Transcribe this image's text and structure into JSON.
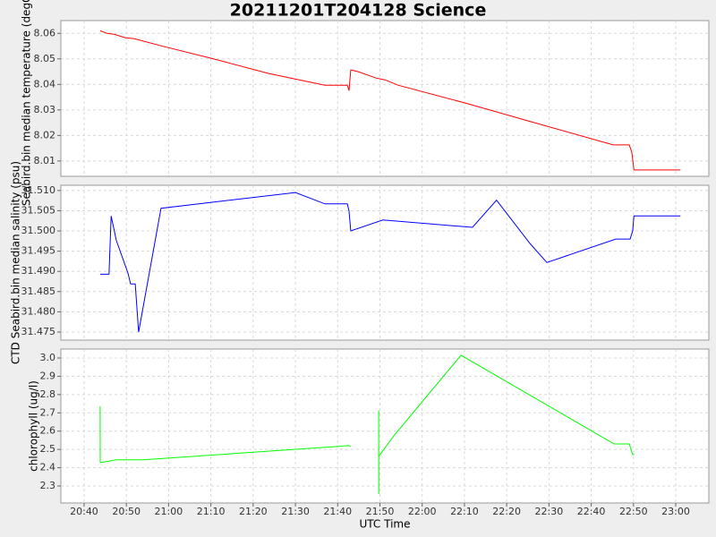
{
  "chart_data": [
    {
      "type": "line",
      "title": "20211201T204128 Science",
      "ylabel": "Seabird.bin median temperature (degC)",
      "color": "#ff0000",
      "x": [
        "20:43:48",
        "20:45:30",
        "20:47:12",
        "20:49:42",
        "20:51:54",
        "20:58:12",
        "21:10:54",
        "21:23:36",
        "21:37:00",
        "21:42:18",
        "21:42:42",
        "21:43:06",
        "21:44:48",
        "21:49:06",
        "21:51:12",
        "21:54:18",
        "22:10:12",
        "22:25:06",
        "22:45:12",
        "22:49:00",
        "22:49:36",
        "22:50:06",
        "23:01:06"
      ],
      "values": [
        8.061,
        8.06,
        8.0596,
        8.0583,
        8.0579,
        8.0551,
        8.0499,
        8.0443,
        8.0397,
        8.0397,
        8.0376,
        8.0457,
        8.045,
        8.0425,
        8.0418,
        8.0397,
        8.0327,
        8.0257,
        8.0163,
        8.0163,
        8.0135,
        8.0065,
        8.0065
      ],
      "xlim": [
        "20:34:30",
        "23:07:50"
      ],
      "ylim": [
        8.004,
        8.065
      ],
      "yticks": [
        8.01,
        8.02,
        8.03,
        8.04,
        8.05,
        8.06
      ],
      "grid": true
    },
    {
      "type": "line",
      "ylabel": "CTD Seabird.bin median salinity (psu)",
      "color": "#0000ff",
      "x": [
        "20:43:48",
        "20:45:54",
        "20:46:24",
        "20:47:36",
        "20:50:24",
        "20:51:00",
        "20:52:06",
        "20:52:54",
        "20:58:12",
        "21:30:00",
        "21:37:00",
        "21:42:18",
        "21:42:42",
        "21:43:06",
        "21:50:42",
        "22:11:54",
        "22:17:36",
        "22:25:30",
        "22:29:30",
        "22:45:48",
        "22:49:12",
        "22:49:48",
        "22:50:06",
        "23:01:06"
      ],
      "values": [
        31.4893,
        31.4893,
        31.5037,
        31.4977,
        31.4895,
        31.4869,
        31.4869,
        31.475,
        31.5056,
        31.5095,
        31.5067,
        31.5067,
        31.5049,
        31.5,
        31.5027,
        31.5009,
        31.5076,
        31.4969,
        31.4922,
        31.498,
        31.498,
        31.5,
        31.5037,
        31.5037
      ],
      "xlim": [
        "20:34:30",
        "23:07:50"
      ],
      "ylim": [
        31.473,
        31.5113
      ],
      "yticks": [
        31.475,
        {
          "value": 31.48,
          "label": "31.480"
        },
        31.485,
        {
          "value": 31.49,
          "label": "31.490"
        },
        31.495,
        {
          "value": 31.5,
          "label": "31.500"
        },
        31.505,
        {
          "value": 31.51,
          "label": "31.510"
        }
      ],
      "grid": true
    },
    {
      "type": "line",
      "ylabel": "chlorophyll (ug/l)",
      "xlabel": "UTC Time",
      "color": "#00ff00",
      "x": [
        "20:43:48",
        "20:43:49",
        "20:47:36",
        "20:54:00",
        "21:42:42",
        "21:43:06",
        null,
        "21:49:42",
        "21:49:43",
        "21:49:44",
        "21:53:18",
        "22:09:12",
        "22:45:24",
        "22:49:00",
        "22:49:48",
        "22:50:12"
      ],
      "values": [
        2.736,
        2.428,
        2.443,
        2.443,
        2.521,
        2.516,
        null,
        2.712,
        2.256,
        2.462,
        2.575,
        3.015,
        2.53,
        2.53,
        2.472,
        2.472
      ],
      "xlim": [
        "20:34:30",
        "23:07:50"
      ],
      "ylim": [
        2.207,
        3.049
      ],
      "yticks": [
        2.3,
        2.4,
        2.5,
        2.6,
        2.7,
        2.8,
        2.9,
        {
          "value": 3,
          "label": "3.0"
        }
      ],
      "xticks": [
        "20:40",
        "20:50",
        "21:00",
        "21:10",
        "21:20",
        "21:30",
        "21:40",
        "21:50",
        "22:00",
        "22:10",
        "22:20",
        "22:30",
        "22:40",
        "22:50",
        "23:00"
      ],
      "grid": true
    }
  ]
}
